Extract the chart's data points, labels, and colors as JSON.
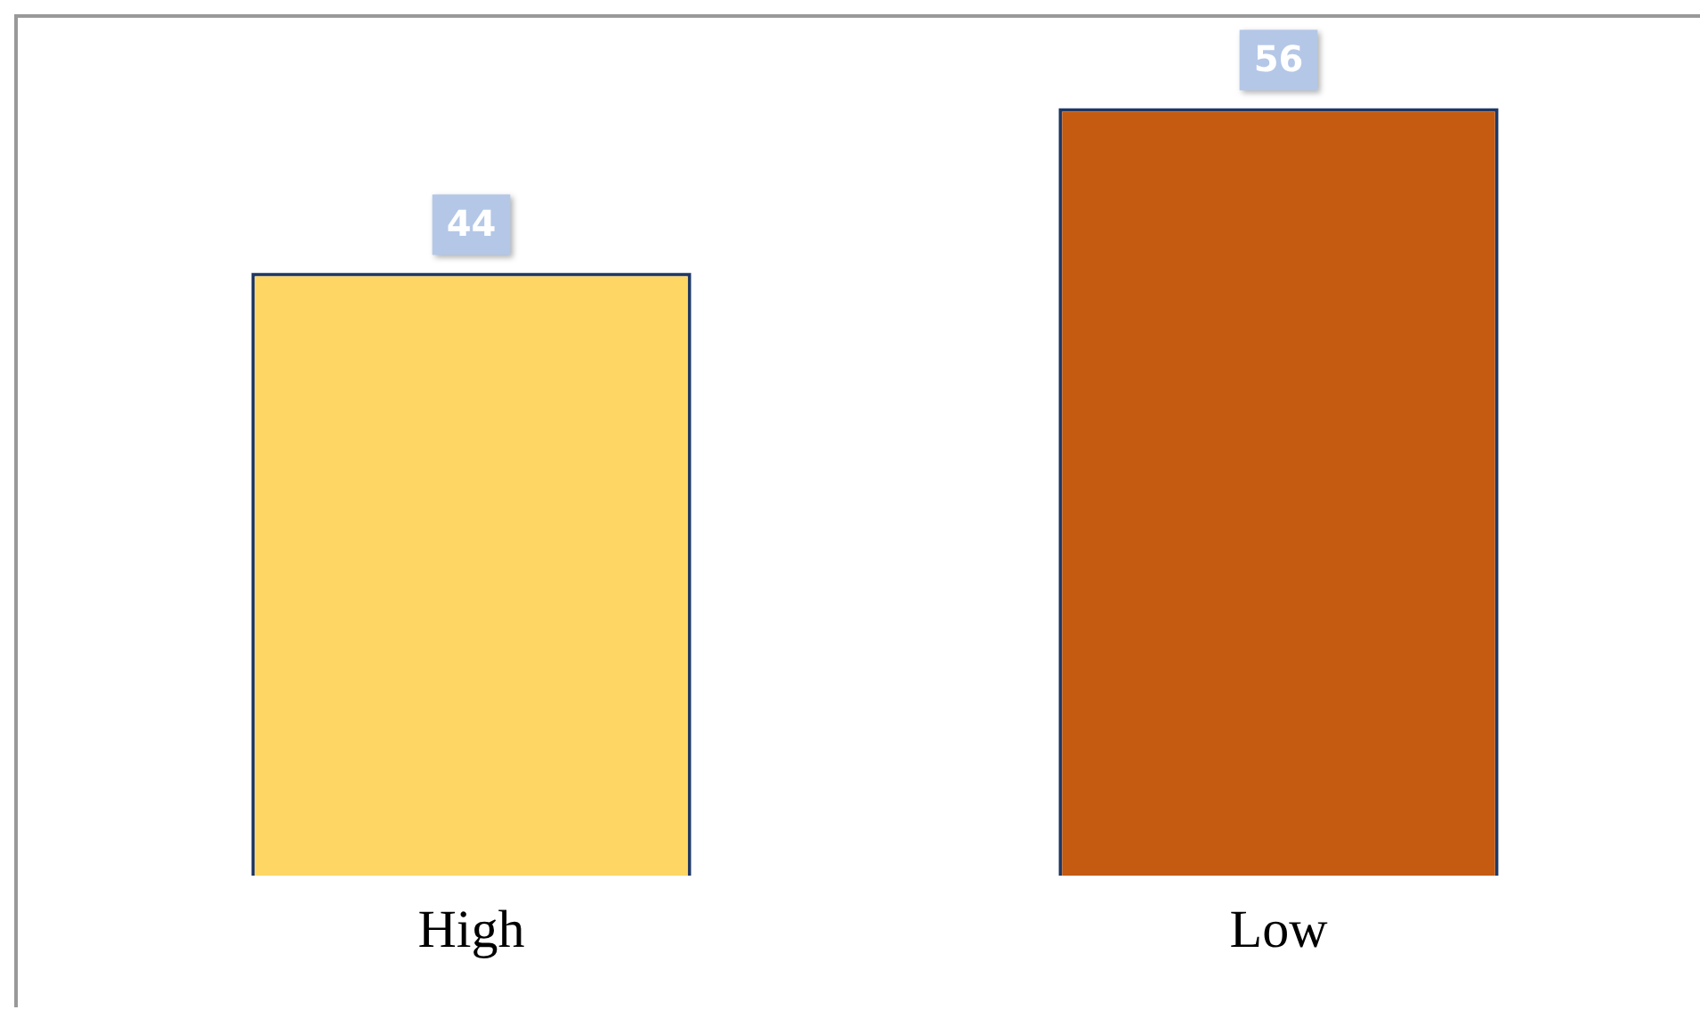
{
  "chart_data": {
    "type": "bar",
    "categories": [
      "High",
      "Low"
    ],
    "colors": [
      "#fdd663",
      "#c55a11"
    ],
    "values": [
      44,
      56
    ],
    "data_labels": true,
    "legend": false,
    "grid": false
  }
}
